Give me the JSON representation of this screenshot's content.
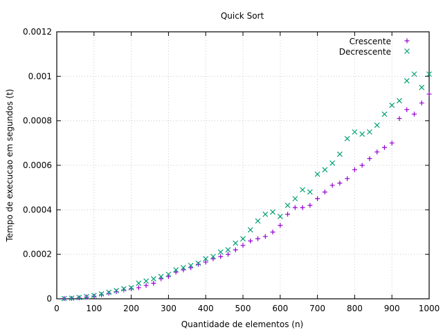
{
  "chart_data": {
    "type": "scatter",
    "title": "Quick Sort",
    "xlabel": "Quantidade de elementos (n)",
    "ylabel": "Tempo de execucao em segundos (t)",
    "xlim": [
      0,
      1000
    ],
    "ylim": [
      0,
      0.0012
    ],
    "xticks": [
      0,
      100,
      200,
      300,
      400,
      500,
      600,
      700,
      800,
      900,
      1000
    ],
    "yticks": [
      0,
      0.0002,
      0.0004,
      0.0006,
      0.0008,
      0.001,
      0.0012
    ],
    "xtick_labels": [
      "0",
      "100",
      "200",
      "300",
      "400",
      "500",
      "600",
      "700",
      "800",
      "900",
      "1000"
    ],
    "ytick_labels": [
      "0",
      "0.0002",
      "0.0004",
      "0.0006",
      "0.0008",
      "0.001",
      "0.0012"
    ],
    "grid": true,
    "legend_position": "top-right",
    "series": [
      {
        "name": "Crescente",
        "marker": "plus",
        "color": "#9400d3",
        "x": [
          20,
          40,
          60,
          80,
          100,
          120,
          140,
          160,
          180,
          200,
          220,
          240,
          260,
          280,
          300,
          320,
          340,
          360,
          380,
          400,
          420,
          440,
          460,
          480,
          500,
          520,
          540,
          560,
          580,
          600,
          620,
          640,
          660,
          680,
          700,
          720,
          740,
          760,
          780,
          800,
          820,
          840,
          860,
          880,
          900,
          920,
          940,
          960,
          980,
          1000
        ],
        "y": [
          1e-06,
          2e-06,
          4e-06,
          8e-06,
          1.2e-05,
          1.8e-05,
          2.5e-05,
          3.2e-05,
          4e-05,
          4.5e-05,
          5e-05,
          6e-05,
          7e-05,
          9e-05,
          0.0001,
          0.00012,
          0.00013,
          0.00014,
          0.000155,
          0.000165,
          0.00018,
          0.00019,
          0.0002,
          0.00022,
          0.00024,
          0.00026,
          0.00027,
          0.00028,
          0.0003,
          0.00033,
          0.00038,
          0.00041,
          0.00041,
          0.00042,
          0.00045,
          0.00048,
          0.00051,
          0.00052,
          0.00054,
          0.00058,
          0.0006,
          0.00063,
          0.00066,
          0.00068,
          0.0007,
          0.00081,
          0.00085,
          0.00083,
          0.00088,
          0.00092
        ]
      },
      {
        "name": "Decrescente",
        "marker": "cross",
        "color": "#009e73",
        "x": [
          20,
          40,
          60,
          80,
          100,
          120,
          140,
          160,
          180,
          200,
          220,
          240,
          260,
          280,
          300,
          320,
          340,
          360,
          380,
          400,
          420,
          440,
          460,
          480,
          500,
          520,
          540,
          560,
          580,
          600,
          620,
          640,
          660,
          680,
          700,
          720,
          740,
          760,
          780,
          800,
          820,
          840,
          860,
          880,
          900,
          920,
          940,
          960,
          980,
          1000
        ],
        "y": [
          1e-06,
          3e-06,
          6e-06,
          1e-05,
          1.5e-05,
          2.2e-05,
          2.9e-05,
          3.7e-05,
          4.5e-05,
          5e-05,
          7e-05,
          8e-05,
          9e-05,
          0.0001,
          0.00011,
          0.00013,
          0.00014,
          0.00015,
          0.00016,
          0.00018,
          0.00019,
          0.00021,
          0.00022,
          0.00025,
          0.00027,
          0.00031,
          0.00035,
          0.00038,
          0.00039,
          0.00037,
          0.00042,
          0.00045,
          0.00049,
          0.00048,
          0.00056,
          0.00058,
          0.00061,
          0.00065,
          0.00072,
          0.00075,
          0.00074,
          0.00075,
          0.00078,
          0.00083,
          0.00087,
          0.00089,
          0.00098,
          0.00101,
          0.00095,
          0.00101
        ]
      }
    ]
  }
}
